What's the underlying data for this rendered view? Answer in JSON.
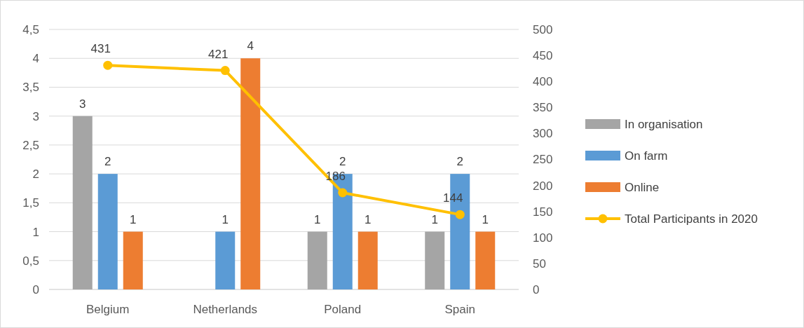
{
  "chart_data": {
    "type": "bar",
    "categories": [
      "Belgium",
      "Netherlands",
      "Poland",
      "Spain"
    ],
    "series": [
      {
        "name": "In organisation",
        "color": "#a5a5a5",
        "values": [
          3,
          null,
          1,
          1
        ]
      },
      {
        "name": "On farm",
        "color": "#5b9bd5",
        "values": [
          2,
          1,
          2,
          2
        ]
      },
      {
        "name": "Online",
        "color": "#ed7d31",
        "values": [
          1,
          4,
          1,
          1
        ]
      },
      {
        "name": "Total Participants in 2020",
        "color": "#ffc000",
        "type": "line",
        "axis": "y2",
        "marker": "circle",
        "values": [
          431,
          421,
          186,
          144
        ]
      }
    ],
    "ylim": [
      0,
      4.5
    ],
    "yticks": [
      0,
      {
        "value": 0.5,
        "label": "0,5"
      },
      1,
      {
        "value": 1.5,
        "label": "1,5"
      },
      2,
      {
        "value": 2.5,
        "label": "2,5"
      },
      3,
      {
        "value": 3.5,
        "label": "3,5"
      },
      4,
      {
        "value": 4.5,
        "label": "4,5"
      }
    ],
    "y2lim": [
      0,
      500
    ],
    "y2ticks": [
      0,
      50,
      100,
      150,
      200,
      250,
      300,
      350,
      400,
      450,
      500
    ],
    "grid": "y",
    "legend": "right",
    "data_labels": true
  }
}
